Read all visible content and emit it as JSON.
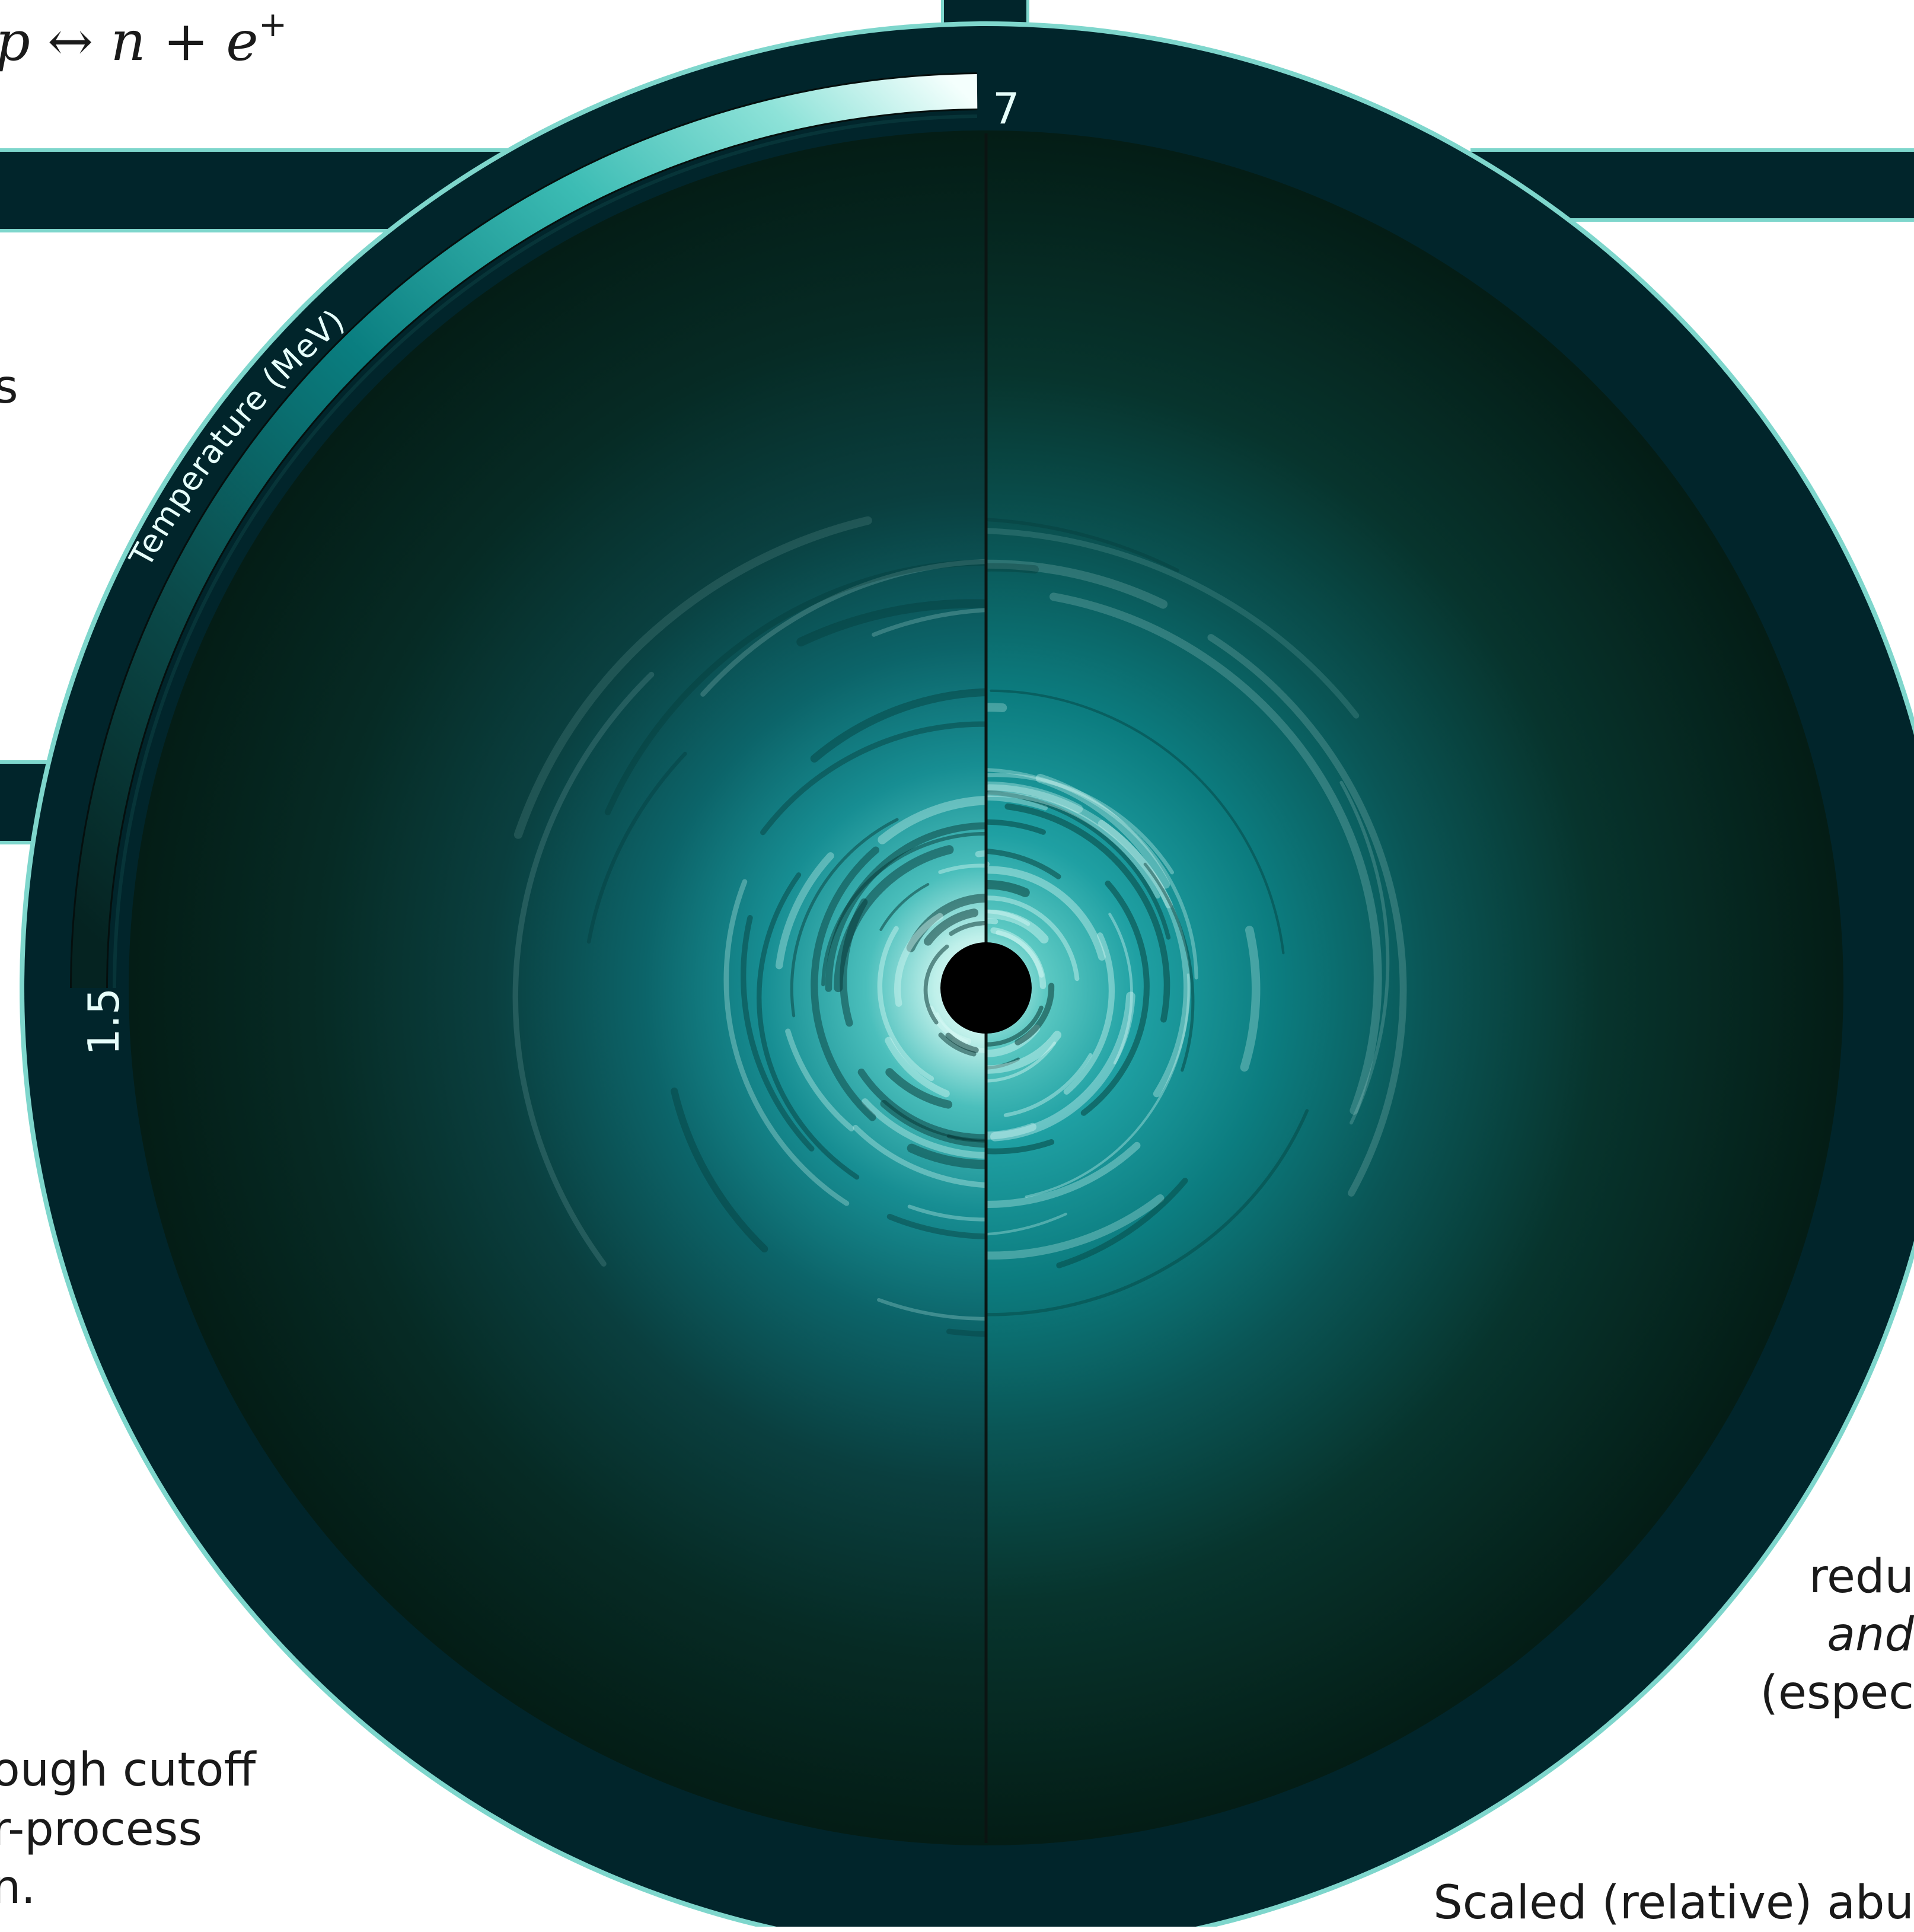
{
  "equation": {
    "text": "p ↔ n + e",
    "superscript": "+"
  },
  "colorbar": {
    "label": "Temperature (MeV)",
    "min_label": "1.5",
    "max_label": "7",
    "min": 1.5,
    "max": 7,
    "colors": [
      "#062826",
      "#0b4a4a",
      "#0a7e80",
      "#3cbcb4",
      "#8de2d8",
      "#f4fffd"
    ]
  },
  "left_fragments": [
    {
      "text": "s"
    },
    {
      "text": "ough cutoff"
    },
    {
      "text": "r-process"
    },
    {
      "text": "n."
    }
  ],
  "right_fragments": [
    {
      "text": "redu"
    },
    {
      "text": "and"
    },
    {
      "text": "(espec"
    }
  ],
  "bottom_fragment": {
    "text": "Scaled (relative) abu"
  },
  "palette": {
    "frame": "#01252b",
    "outline": "#7ed6cc",
    "disk_edge": "#041c16",
    "bright": "#e6fffb"
  }
}
